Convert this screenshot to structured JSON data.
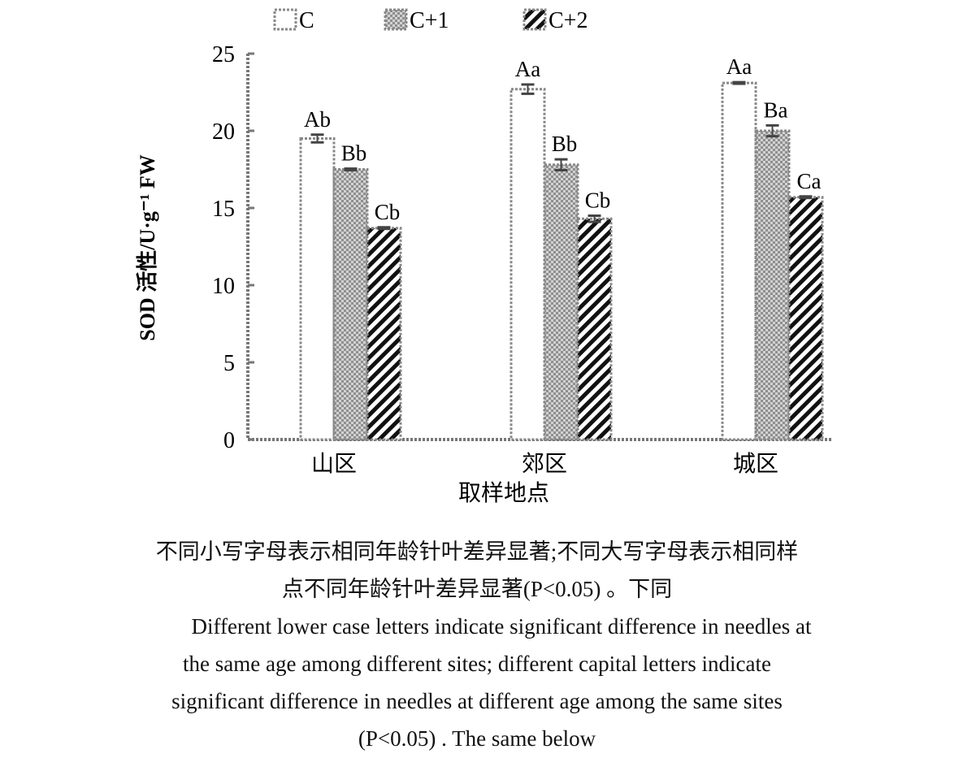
{
  "chart_data": {
    "type": "bar",
    "title": "",
    "xlabel": "取样地点",
    "ylabel": "SOD 活性/U·g⁻¹ FW",
    "ylim": [
      0,
      25
    ],
    "yticks": [
      "0",
      "5",
      "10",
      "15",
      "20",
      "25"
    ],
    "categories": [
      "山区",
      "郊区",
      "城区"
    ],
    "legend_position": "top",
    "grid": false,
    "series": [
      {
        "name": "C",
        "values": [
          19.5,
          22.7,
          23.1
        ],
        "errors": [
          0.25,
          0.3,
          0.05
        ],
        "labels": [
          "Ab",
          "Aa",
          "Aa"
        ],
        "pattern": "blank"
      },
      {
        "name": "C+1",
        "values": [
          17.5,
          17.8,
          20.0
        ],
        "errors": [
          0.05,
          0.35,
          0.35
        ],
        "labels": [
          "Bb",
          "Bb",
          "Ba"
        ],
        "pattern": "checker"
      },
      {
        "name": "C+2",
        "values": [
          13.7,
          14.3,
          15.7
        ],
        "errors": [
          0.05,
          0.2,
          0.05
        ],
        "labels": [
          "Cb",
          "Cb",
          "Ca"
        ],
        "pattern": "hatch"
      }
    ]
  },
  "caption": {
    "zh_line1": "不同小写字母表示相同年龄针叶差异显著;不同大写字母表示相同样",
    "zh_line2": "点不同年龄针叶差异显著(P<0.05) 。下同",
    "en_line1": "Different lower case letters indicate significant difference in needles at",
    "en_line2": "the same age among different sites; different capital letters indicate",
    "en_line3": "significant difference in needles at different age among the same sites",
    "en_line4": "(P<0.05) . The same below"
  }
}
